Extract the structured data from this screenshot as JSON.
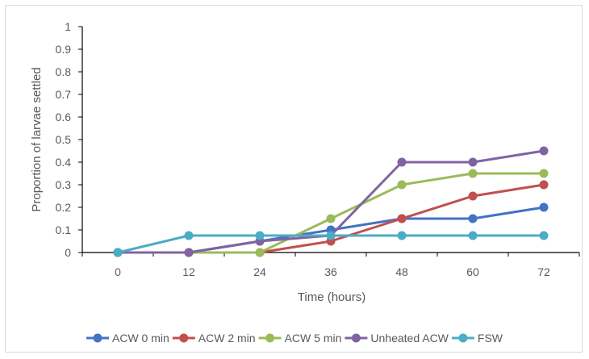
{
  "chart_data": {
    "type": "line",
    "title": "",
    "xlabel": "Time (hours)",
    "ylabel": "Proportion of larvae settled",
    "categories": [
      "0",
      "12",
      "24",
      "36",
      "48",
      "60",
      "72"
    ],
    "ylim": [
      0,
      1
    ],
    "yticks": [
      "0",
      "0.1",
      "0.2",
      "0.3",
      "0.4",
      "0.5",
      "0.6",
      "0.7",
      "0.8",
      "0.9",
      "1"
    ],
    "grid": false,
    "legend_position": "bottom",
    "series": [
      {
        "name": "ACW 0 min",
        "color": "#4472c4",
        "values": [
          0,
          0,
          0.05,
          0.1,
          0.15,
          0.15,
          0.2
        ]
      },
      {
        "name": "ACW 2 min",
        "color": "#c0504d",
        "values": [
          0,
          0,
          0,
          0.05,
          0.15,
          0.25,
          0.3
        ]
      },
      {
        "name": "ACW 5 min",
        "color": "#9bbb59",
        "values": [
          0,
          0,
          0,
          0.15,
          0.3,
          0.35,
          0.35
        ]
      },
      {
        "name": "Unheated ACW",
        "color": "#8064a2",
        "values": [
          0,
          0,
          0.05,
          0.075,
          0.4,
          0.4,
          0.45
        ]
      },
      {
        "name": "FSW",
        "color": "#4bacc6",
        "values": [
          0,
          0.075,
          0.075,
          0.075,
          0.075,
          0.075,
          0.075
        ]
      }
    ]
  }
}
